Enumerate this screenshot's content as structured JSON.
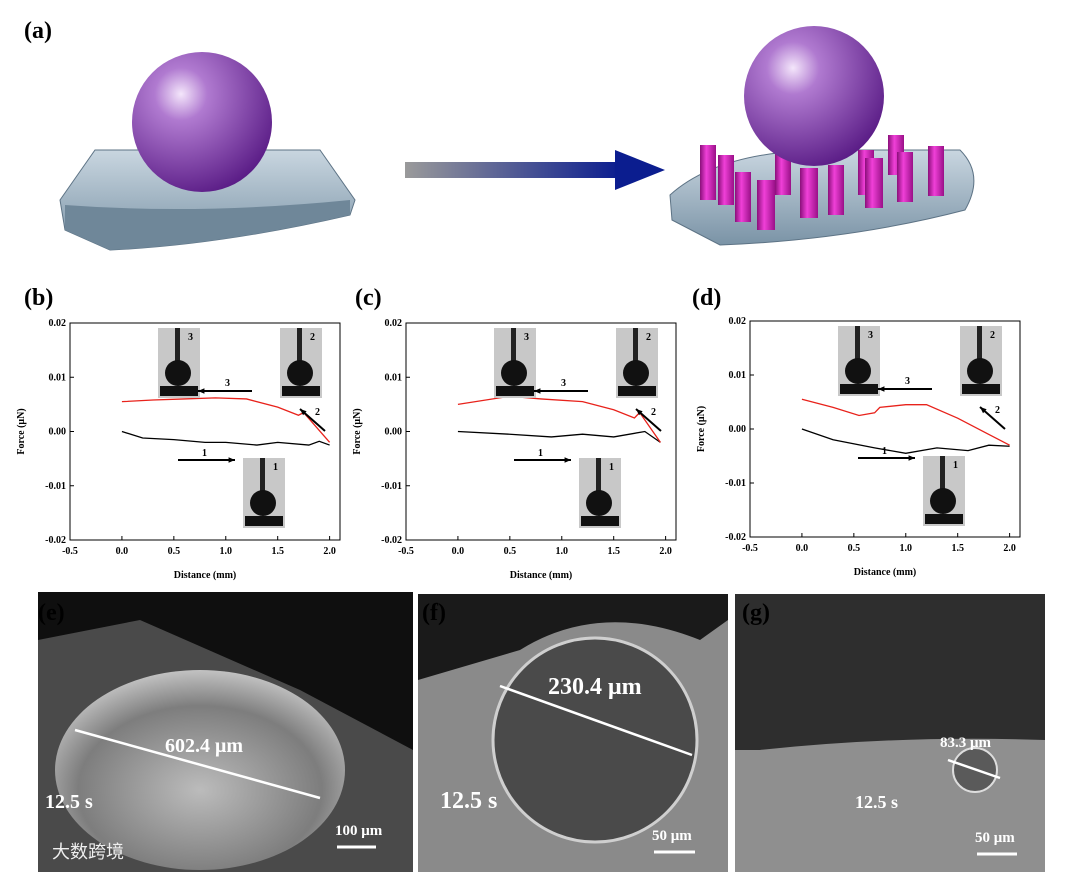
{
  "panel_labels": [
    "(a)",
    "(b)",
    "(c)",
    "(d)",
    "(e)",
    "(f)",
    "(g)"
  ],
  "chart_data": [
    {
      "type": "line",
      "xlabel": "Distance (mm)",
      "ylabel": "Force (μN)",
      "xlim": [
        -0.5,
        2.1
      ],
      "ylim": [
        -0.02,
        0.02
      ],
      "xticks": [
        -0.5,
        {
          "value": 0,
          "label": "0.0"
        },
        0.5,
        {
          "value": 1,
          "label": "1.0"
        },
        1.5,
        {
          "value": 2,
          "label": "2.0"
        }
      ],
      "yticks": [
        -0.02,
        -0.01,
        {
          "value": 0,
          "label": "0.00"
        },
        0.01,
        0.02
      ],
      "annotations": [
        "1",
        "2",
        "3"
      ],
      "series": [
        {
          "color": "#000000",
          "x": [
            0,
            0.2,
            0.5,
            0.8,
            1.0,
            1.3,
            1.5,
            1.8,
            1.9,
            2.0
          ],
          "values": [
            0.0,
            -0.0012,
            -0.0015,
            -0.002,
            -0.002,
            -0.0025,
            -0.002,
            -0.0025,
            -0.0018,
            -0.0025
          ]
        },
        {
          "color": "#e8221b",
          "x": [
            0,
            0.3,
            0.6,
            0.9,
            1.2,
            1.5,
            1.7,
            1.75,
            2.0
          ],
          "values": [
            0.0055,
            0.0058,
            0.006,
            0.0062,
            0.006,
            0.0045,
            0.003,
            0.0035,
            -0.002
          ]
        }
      ]
    },
    {
      "type": "line",
      "xlabel": "Distance (mm)",
      "ylabel": "Force (μN)",
      "xlim": [
        -0.5,
        2.1
      ],
      "ylim": [
        -0.02,
        0.02
      ],
      "xticks": [
        -0.5,
        {
          "value": 0,
          "label": "0.0"
        },
        0.5,
        {
          "value": 1,
          "label": "1.0"
        },
        1.5,
        {
          "value": 2,
          "label": "2.0"
        }
      ],
      "yticks": [
        -0.02,
        -0.01,
        {
          "value": 0,
          "label": "0.00"
        },
        0.01,
        0.02
      ],
      "annotations": [
        "1",
        "2",
        "3"
      ],
      "series": [
        {
          "color": "#000000",
          "x": [
            0,
            0.5,
            0.9,
            1.2,
            1.5,
            1.8,
            1.95
          ],
          "values": [
            0.0,
            -0.0005,
            -0.001,
            -0.0005,
            -0.001,
            0.0,
            -0.002
          ]
        },
        {
          "color": "#e8221b",
          "x": [
            0,
            0.5,
            0.8,
            1.2,
            1.5,
            1.7,
            1.75,
            1.95
          ],
          "values": [
            0.005,
            0.0065,
            0.006,
            0.0055,
            0.004,
            0.0025,
            0.0035,
            -0.002
          ]
        }
      ]
    },
    {
      "type": "line",
      "xlabel": "Distance (mm)",
      "ylabel": "Force (μN)",
      "xlim": [
        -0.5,
        2.1
      ],
      "ylim": [
        -0.02,
        0.02
      ],
      "xticks": [
        -0.5,
        {
          "value": 0,
          "label": "0.0"
        },
        0.5,
        {
          "value": 1,
          "label": "1.0"
        },
        1.5,
        {
          "value": 2,
          "label": "2.0"
        }
      ],
      "yticks": [
        -0.02,
        -0.01,
        {
          "value": 0,
          "label": "0.00"
        },
        0.01,
        0.02
      ],
      "annotations": [
        "1",
        "2",
        "3"
      ],
      "series": [
        {
          "color": "#000000",
          "x": [
            0,
            0.3,
            0.7,
            1.0,
            1.3,
            1.6,
            1.8,
            2.0
          ],
          "values": [
            0.0,
            -0.002,
            -0.0035,
            -0.0045,
            -0.0035,
            -0.004,
            -0.003,
            -0.0032
          ]
        },
        {
          "color": "#e8221b",
          "x": [
            0,
            0.3,
            0.55,
            0.7,
            0.75,
            1.0,
            1.2,
            1.5,
            1.8,
            2.0
          ],
          "values": [
            0.0055,
            0.004,
            0.0025,
            0.003,
            0.004,
            0.0045,
            0.0045,
            0.002,
            -0.001,
            -0.003
          ]
        }
      ]
    }
  ],
  "micrographs": [
    {
      "time": "12.5 s",
      "size": "602.4 μm",
      "scale": "100 μm"
    },
    {
      "time": "12.5 s",
      "size": "230.4 μm",
      "scale": "50 μm"
    },
    {
      "time": "12.5 s",
      "size": "83.3 μm",
      "scale": "50 μm"
    }
  ],
  "watermark": "大数跨境"
}
